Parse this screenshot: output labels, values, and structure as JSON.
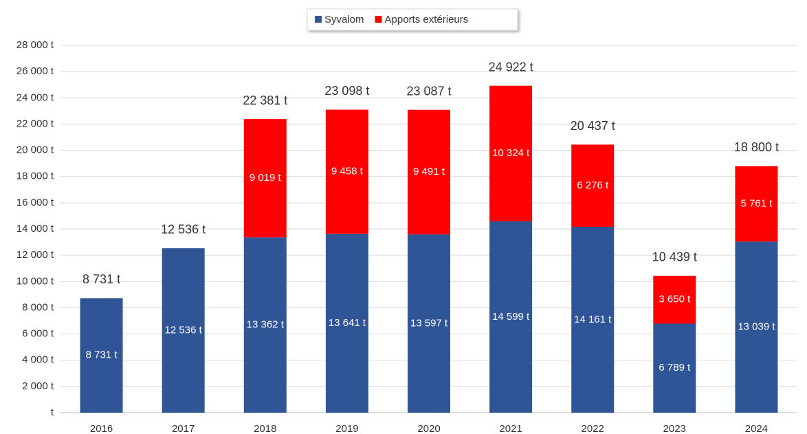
{
  "chart_data": {
    "type": "stacked_bar",
    "categories": [
      "2016",
      "2017",
      "2018",
      "2019",
      "2020",
      "2021",
      "2022",
      "2023",
      "2024"
    ],
    "series": [
      {
        "name": "Syvalom",
        "color": "#2f5597",
        "values": [
          8731,
          12536,
          13362,
          13641,
          13597,
          14599,
          14161,
          6789,
          13039
        ],
        "value_labels": [
          "8 731 t",
          "12 536 t",
          "13 362 t",
          "13 641 t",
          "13 597 t",
          "14 599 t",
          "14 161 t",
          "6 789 t",
          "13 039 t"
        ]
      },
      {
        "name": "Apports extérieurs",
        "color": "#ff0000",
        "values": [
          null,
          null,
          9019,
          9458,
          9491,
          10324,
          6276,
          3650,
          5761
        ],
        "value_labels": [
          null,
          null,
          "9 019 t",
          "9 458 t",
          "9 491 t",
          "10 324 t",
          "6 276 t",
          "3 650 t",
          "5 761 t"
        ]
      }
    ],
    "totals": [
      8731,
      12536,
      22381,
      23098,
      23087,
      24922,
      20437,
      10439,
      18800
    ],
    "total_labels": [
      "8 731 t",
      "12 536 t",
      "22 381 t",
      "23 098 t",
      "23 087 t",
      "24 922 t",
      "20 437 t",
      "10 439 t",
      "18 800 t"
    ],
    "ylim": [
      0,
      28000
    ],
    "yticks": [
      {
        "value": 0,
        "label": "t"
      },
      {
        "value": 2000,
        "label": "2 000 t"
      },
      {
        "value": 4000,
        "label": "4 000 t"
      },
      {
        "value": 6000,
        "label": "6 000 t"
      },
      {
        "value": 8000,
        "label": "8 000 t"
      },
      {
        "value": 10000,
        "label": "10 000 t"
      },
      {
        "value": 12000,
        "label": "12 000 t"
      },
      {
        "value": 14000,
        "label": "14 000 t"
      },
      {
        "value": 16000,
        "label": "16 000 t"
      },
      {
        "value": 18000,
        "label": "18 000 t"
      },
      {
        "value": 20000,
        "label": "20 000 t"
      },
      {
        "value": 22000,
        "label": "22 000 t"
      },
      {
        "value": 24000,
        "label": "24 000 t"
      },
      {
        "value": 26000,
        "label": "26 000 t"
      },
      {
        "value": 28000,
        "label": "28 000 t"
      }
    ],
    "grid": true,
    "legend": "top"
  }
}
